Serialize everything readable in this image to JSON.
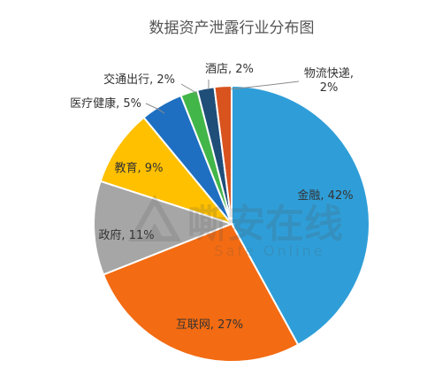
{
  "chart_data": {
    "type": "pie",
    "title": "数据资产泄露行业分布图",
    "slices": [
      {
        "name": "金融",
        "value": 42,
        "label": "金融, 42%",
        "color": "#2F9ED8"
      },
      {
        "name": "互联网",
        "value": 27,
        "label": "互联网, 27%",
        "color": "#F36B12"
      },
      {
        "name": "政府",
        "value": 11,
        "label": "政府, 11%",
        "color": "#A6A6A6"
      },
      {
        "name": "教育",
        "value": 9,
        "label": "教育, 9%",
        "color": "#FFC000"
      },
      {
        "name": "医疗健康",
        "value": 5,
        "label": "医疗健康, 5%",
        "color": "#1E6FC1"
      },
      {
        "name": "交通出行",
        "value": 2,
        "label": "交通出行, 2%",
        "color": "#43B649"
      },
      {
        "name": "酒店",
        "value": 2,
        "label": "酒店, 2%",
        "color": "#1F4E79"
      },
      {
        "name": "物流快递",
        "value": 2,
        "label": [
          "物流快递,",
          "2%"
        ],
        "color": "#D9531E"
      }
    ]
  },
  "watermark": {
    "logo_text": "嘶安在线",
    "sub_text": "Safe Online"
  }
}
